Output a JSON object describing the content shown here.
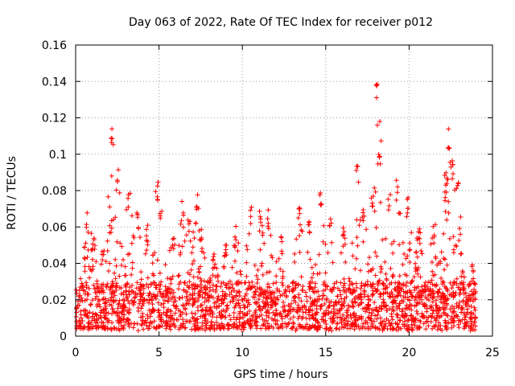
{
  "chart_data": {
    "type": "scatter",
    "title": "Day 063 of 2022, Rate Of TEC Index for receiver p012",
    "xlabel": "GPS time / hours",
    "ylabel": "ROTI / TECUs",
    "xlim": [
      0,
      25
    ],
    "ylim": [
      0,
      0.16
    ],
    "xticks": [
      "0",
      "5",
      "10",
      "15",
      "20",
      "25"
    ],
    "yticks": [
      "0",
      "0.02",
      "0.04",
      "0.06",
      "0.08",
      "0.1",
      "0.12",
      "0.14",
      "0.16"
    ],
    "grid": true,
    "marker": "+",
    "color": "#ff0000",
    "peaks": [
      {
        "x": 0.5,
        "y": 0.045
      },
      {
        "x": 0.7,
        "y": 0.069
      },
      {
        "x": 1.0,
        "y": 0.058
      },
      {
        "x": 1.6,
        "y": 0.05
      },
      {
        "x": 2.1,
        "y": 0.066
      },
      {
        "x": 2.2,
        "y": 0.117
      },
      {
        "x": 2.5,
        "y": 0.092
      },
      {
        "x": 3.2,
        "y": 0.08
      },
      {
        "x": 3.7,
        "y": 0.07
      },
      {
        "x": 4.3,
        "y": 0.062
      },
      {
        "x": 4.9,
        "y": 0.086
      },
      {
        "x": 5.1,
        "y": 0.075
      },
      {
        "x": 5.8,
        "y": 0.058
      },
      {
        "x": 6.4,
        "y": 0.075
      },
      {
        "x": 6.8,
        "y": 0.065
      },
      {
        "x": 7.3,
        "y": 0.081
      },
      {
        "x": 7.5,
        "y": 0.062
      },
      {
        "x": 8.3,
        "y": 0.048
      },
      {
        "x": 9.0,
        "y": 0.052
      },
      {
        "x": 9.6,
        "y": 0.061
      },
      {
        "x": 10.5,
        "y": 0.072
      },
      {
        "x": 11.1,
        "y": 0.069
      },
      {
        "x": 11.5,
        "y": 0.071
      },
      {
        "x": 12.3,
        "y": 0.058
      },
      {
        "x": 13.4,
        "y": 0.072
      },
      {
        "x": 14.0,
        "y": 0.063
      },
      {
        "x": 14.7,
        "y": 0.082
      },
      {
        "x": 15.3,
        "y": 0.065
      },
      {
        "x": 16.1,
        "y": 0.06
      },
      {
        "x": 16.9,
        "y": 0.094
      },
      {
        "x": 17.3,
        "y": 0.072
      },
      {
        "x": 17.8,
        "y": 0.083
      },
      {
        "x": 18.1,
        "y": 0.141
      },
      {
        "x": 18.2,
        "y": 0.099
      },
      {
        "x": 18.8,
        "y": 0.078
      },
      {
        "x": 19.3,
        "y": 0.086
      },
      {
        "x": 19.9,
        "y": 0.078
      },
      {
        "x": 20.6,
        "y": 0.062
      },
      {
        "x": 21.5,
        "y": 0.066
      },
      {
        "x": 22.2,
        "y": 0.09
      },
      {
        "x": 22.4,
        "y": 0.114
      },
      {
        "x": 22.6,
        "y": 0.097
      },
      {
        "x": 22.9,
        "y": 0.085
      },
      {
        "x": 23.2,
        "y": 0.036
      },
      {
        "x": 23.8,
        "y": 0.043
      }
    ],
    "baseline_range": [
      0.003,
      0.03
    ]
  }
}
